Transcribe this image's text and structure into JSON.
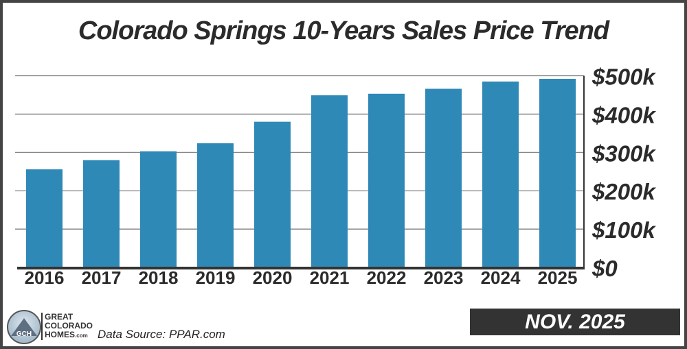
{
  "chart_data": {
    "type": "bar",
    "title": "Colorado Springs 10-Years Sales Price Trend",
    "categories": [
      "2016",
      "2017",
      "2018",
      "2019",
      "2020",
      "2021",
      "2022",
      "2023",
      "2024",
      "2025"
    ],
    "values": [
      256000,
      280000,
      303000,
      324000,
      380000,
      449000,
      453000,
      466000,
      485000,
      492000
    ],
    "ylim": [
      0,
      500000
    ],
    "yticks": [
      0,
      100000,
      200000,
      300000,
      400000,
      500000
    ],
    "ytick_labels": [
      "$0",
      "$100k",
      "$200k",
      "$300k",
      "$400k",
      "$500k"
    ],
    "yaxis_position": "right",
    "grid": true,
    "bar_color": "#2f89b7"
  },
  "footer": {
    "logo_text": [
      "GREAT",
      "COLORADO",
      "HOMES"
    ],
    "logo_suffix": ".com",
    "logo_badge": "GCH",
    "source": "Data Source: PPAR.com",
    "date": "NOV. 2025"
  }
}
